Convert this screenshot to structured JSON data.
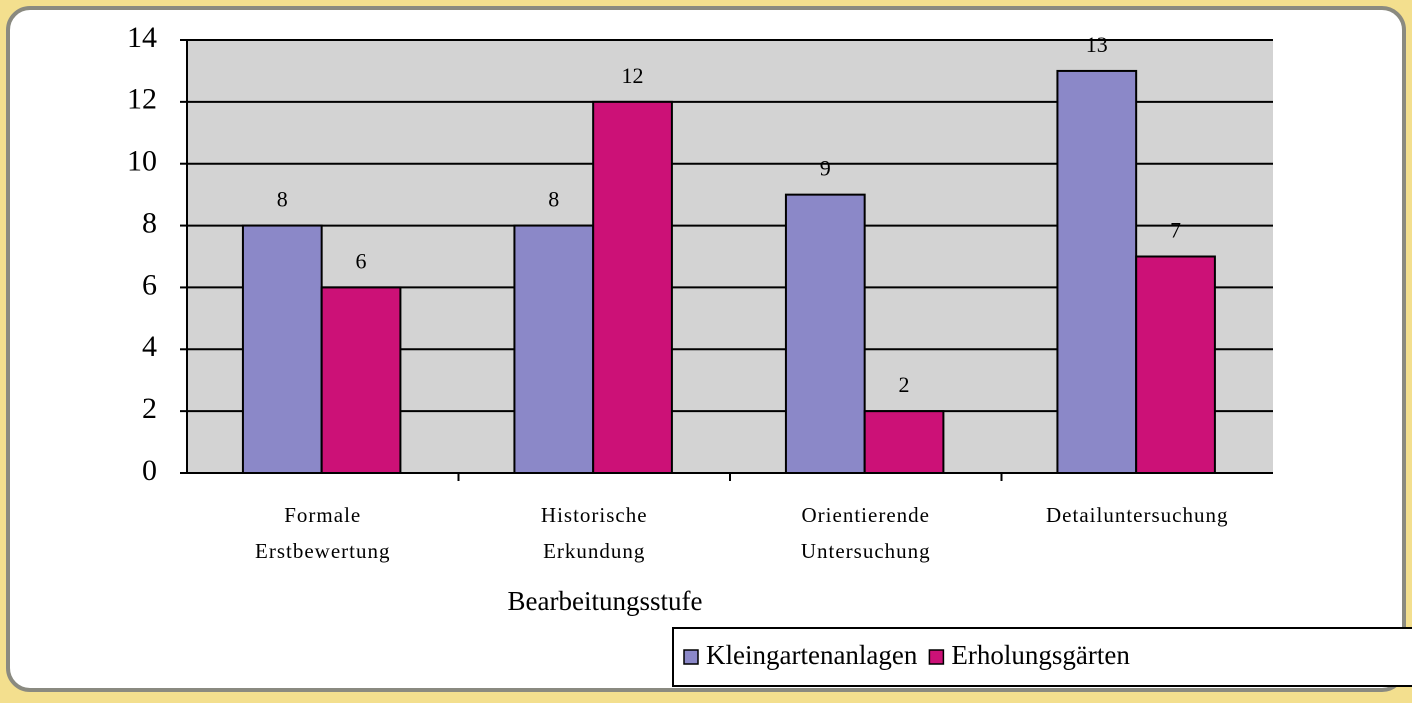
{
  "chart_data": {
    "type": "bar",
    "x_label": "Bearbeitungsstufe",
    "categories": [
      "Formale Erstbewertung",
      "Historische Erkundung",
      "Orientierende Untersuchung",
      "Detailuntersuchung"
    ],
    "series": [
      {
        "name": "Kleingartenanlagen",
        "color": "#8b88c8",
        "values": [
          8,
          8,
          9,
          13
        ]
      },
      {
        "name": "Erholungsgärten",
        "color": "#cc1177",
        "values": [
          6,
          12,
          2,
          7
        ]
      }
    ],
    "ylim": [
      0,
      14
    ],
    "yticks": [
      0,
      2,
      4,
      6,
      8,
      10,
      12,
      14
    ],
    "grid": true,
    "legend": "bottom-right"
  }
}
